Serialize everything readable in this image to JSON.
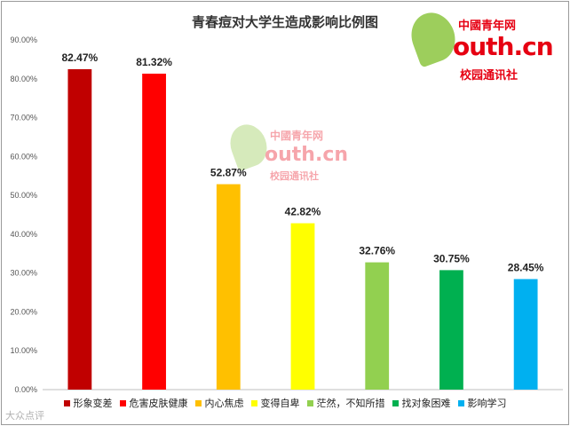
{
  "chart_data": {
    "type": "bar",
    "title": "青春痘对大学生造成影响比例图",
    "categories": [
      "形象变差",
      "危害皮肤健康",
      "内心焦虑",
      "变得自卑",
      "茫然，不知所措",
      "找对象困难",
      "影响学习"
    ],
    "values": [
      82.47,
      81.32,
      52.87,
      42.82,
      32.76,
      30.75,
      28.45
    ],
    "value_labels": [
      "82.47%",
      "81.32%",
      "52.87%",
      "42.82%",
      "32.76%",
      "30.75%",
      "28.45%"
    ],
    "colors": [
      "#c00000",
      "#ff0000",
      "#ffc000",
      "#ffff00",
      "#92d050",
      "#00b050",
      "#00b0f0"
    ],
    "ylim": [
      0,
      90
    ],
    "yticks": [
      "0.00%",
      "10.00%",
      "20.00%",
      "30.00%",
      "40.00%",
      "50.00%",
      "60.00%",
      "70.00%",
      "80.00%",
      "90.00%"
    ],
    "xlabel": "",
    "ylabel": "",
    "grid": false,
    "legend_position": "bottom"
  },
  "logo": {
    "brand_cn": "中國",
    "brand_line": "青年网",
    "domain": "outh.cn",
    "sub": "校园通讯社",
    "leaf_color": "#8cc63f",
    "brand_color": "#e60012"
  },
  "credit": "大众点评"
}
